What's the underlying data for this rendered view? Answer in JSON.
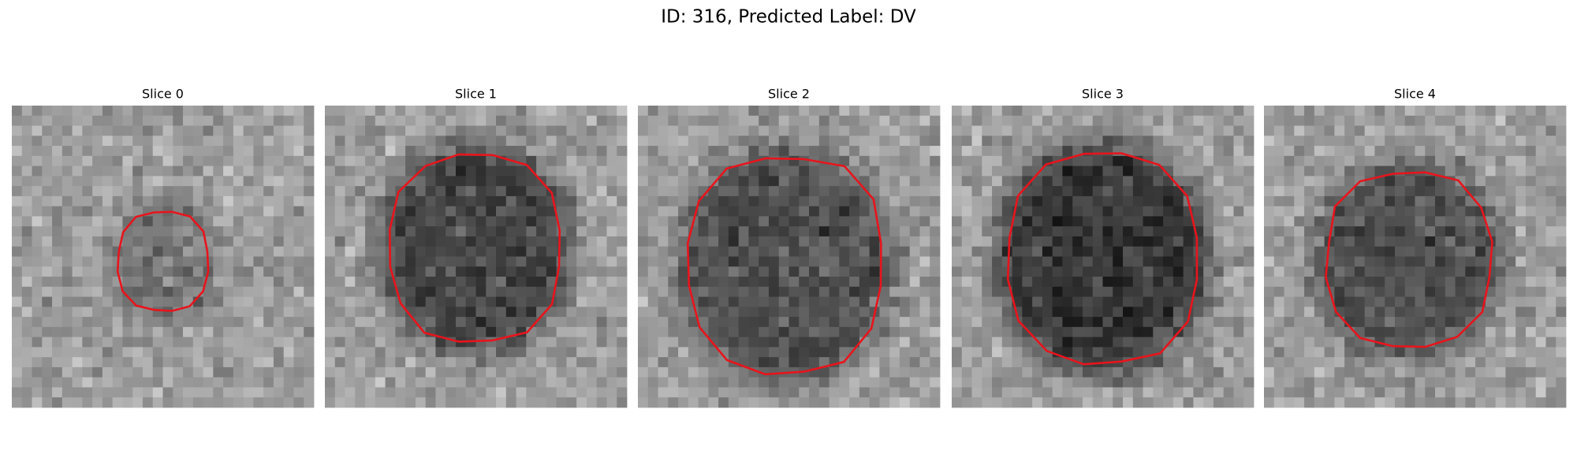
{
  "header": {
    "title": "ID: 316, Predicted Label: DV"
  },
  "panels": [
    {
      "title": "Slice 0"
    },
    {
      "title": "Slice 1"
    },
    {
      "title": "Slice 2"
    },
    {
      "title": "Slice 3"
    },
    {
      "title": "Slice 4"
    }
  ]
}
